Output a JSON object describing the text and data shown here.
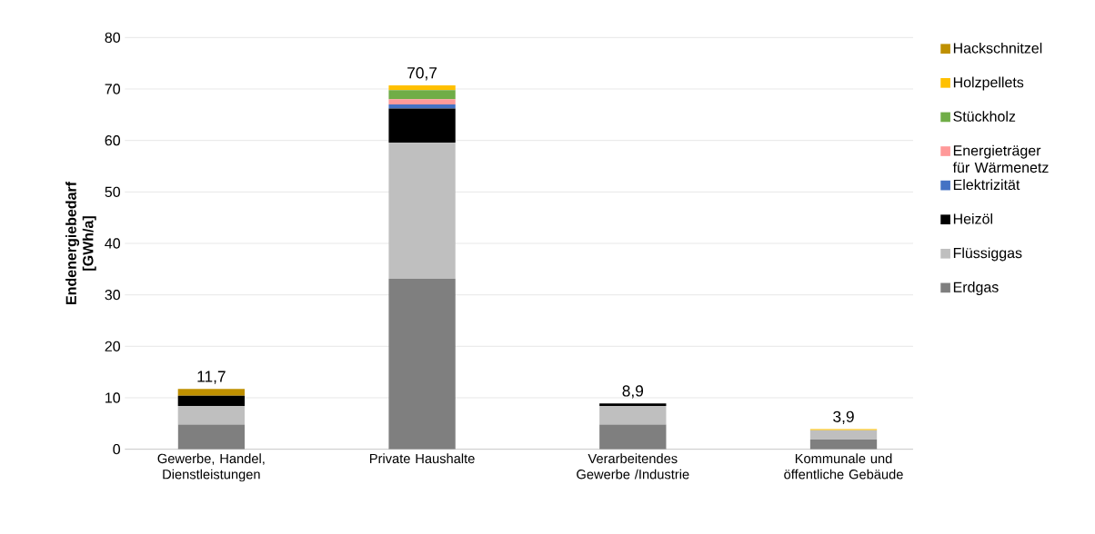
{
  "chart_data": {
    "type": "bar",
    "stacked": true,
    "ylabel": "Endenergiebedarf [GWh/a]",
    "categories": [
      "Gewerbe, Handel, Dienstleistungen",
      "Private Haushalte",
      "Verarbeitendes Gewerbe /Industrie",
      "Kommunale und öffentliche Gebäude"
    ],
    "series": [
      {
        "name": "Erdgas",
        "color": "#7f7f7f",
        "values": [
          4.8,
          33.1,
          4.8,
          1.9
        ]
      },
      {
        "name": "Flüssiggas",
        "color": "#bfbfbf",
        "values": [
          3.6,
          26.5,
          3.6,
          1.8
        ]
      },
      {
        "name": "Heizöl",
        "color": "#000000",
        "values": [
          2.0,
          6.6,
          0.5,
          null
        ]
      },
      {
        "name": "Elektrizität",
        "color": "#4472c4",
        "values": [
          null,
          0.8,
          null,
          null
        ]
      },
      {
        "name": "Energieträger für Wärmenetz",
        "color": "#ff9999",
        "values": [
          null,
          1.0,
          null,
          null
        ]
      },
      {
        "name": "Stückholz",
        "color": "#70ad47",
        "values": [
          null,
          1.8,
          null,
          null
        ]
      },
      {
        "name": "Holzpellets",
        "color": "#ffc000",
        "values": [
          null,
          0.9,
          null,
          0.2
        ]
      },
      {
        "name": "Hackschnitzel",
        "color": "#bf9000",
        "values": [
          1.3,
          null,
          null,
          null
        ]
      }
    ],
    "totals": [
      "11,7",
      "70,7",
      "8,9",
      "3,9"
    ],
    "ylim": [
      0,
      80
    ],
    "yticks": [
      0,
      10,
      20,
      30,
      40,
      50,
      60,
      70,
      80
    ],
    "grid": "y",
    "legend": "right"
  }
}
